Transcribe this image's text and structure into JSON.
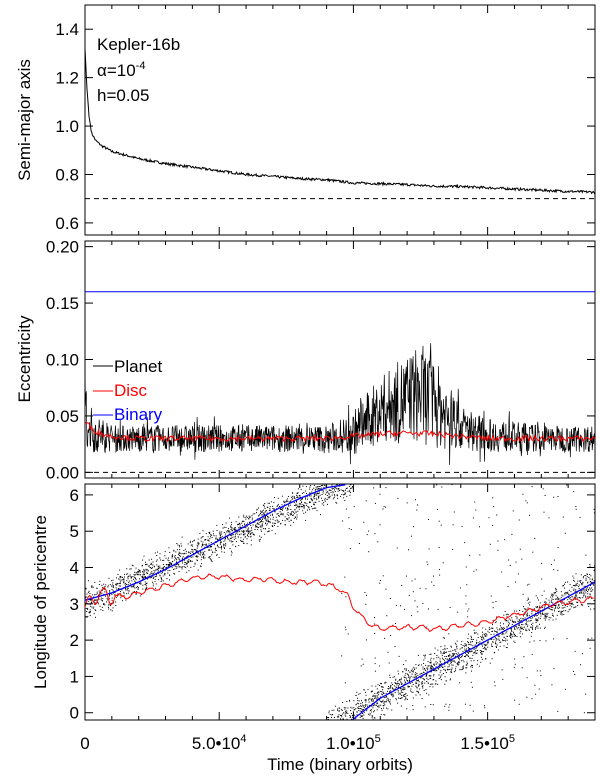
{
  "figure": {
    "xlabel": "Time (binary orbits)",
    "xlim": [
      0,
      190000
    ],
    "x_ticks": [
      {
        "value": 0,
        "label": "0"
      },
      {
        "value": 50000,
        "label": "5.0•10",
        "exp": "4"
      },
      {
        "value": 100000,
        "label": "1.0•10",
        "exp": "5"
      },
      {
        "value": 150000,
        "label": "1.5•10",
        "exp": "5"
      }
    ]
  },
  "chart_data": [
    {
      "type": "line",
      "ylabel": "Semi-major axis",
      "ylim": [
        0.55,
        1.5
      ],
      "y_ticks": [
        {
          "value": 0.6,
          "label": "0.6"
        },
        {
          "value": 0.8,
          "label": "0.8"
        },
        {
          "value": 1.0,
          "label": "1.0"
        },
        {
          "value": 1.2,
          "label": "1.2"
        },
        {
          "value": 1.4,
          "label": "1.4"
        }
      ],
      "annotations": {
        "name": "Kepler-16b",
        "alpha_base": "α=10",
        "alpha_exp": "-4",
        "h": "h=0.05"
      },
      "series": [
        {
          "color": "#000000",
          "x": [
            0,
            700,
            1500,
            2500,
            4000,
            6000,
            10000,
            15000,
            20000,
            30000,
            40000,
            50000,
            60000,
            70000,
            80000,
            90000,
            100000,
            110000,
            120000,
            130000,
            140000,
            150000,
            160000,
            170000,
            180000,
            190000
          ],
          "y": [
            1.32,
            1.16,
            1.04,
            0.97,
            0.94,
            0.92,
            0.895,
            0.88,
            0.865,
            0.845,
            0.83,
            0.815,
            0.8,
            0.792,
            0.783,
            0.778,
            0.765,
            0.762,
            0.758,
            0.752,
            0.75,
            0.745,
            0.74,
            0.735,
            0.73,
            0.727
          ]
        }
      ],
      "reference_line": {
        "y": 0.7,
        "style": "dashed"
      }
    },
    {
      "type": "line",
      "ylabel": "Eccentricity",
      "ylim": [
        -0.005,
        0.205
      ],
      "y_ticks": [
        {
          "value": 0.0,
          "label": "0.00"
        },
        {
          "value": 0.05,
          "label": "0.05"
        },
        {
          "value": 0.1,
          "label": "0.10"
        },
        {
          "value": 0.15,
          "label": "0.15"
        },
        {
          "value": 0.2,
          "label": "0.20"
        }
      ],
      "legend": {
        "placement": "middle-left",
        "entries": [
          {
            "label": "Planet",
            "color": "#000000"
          },
          {
            "label": "Disc",
            "color": "#ff0000"
          },
          {
            "label": "Binary",
            "color": "#0000ff"
          }
        ]
      },
      "series": [
        {
          "name": "Binary",
          "color": "#0000ff",
          "x": [
            0,
            190000
          ],
          "y": [
            0.16,
            0.16
          ]
        },
        {
          "name": "Disc",
          "color": "#ff0000",
          "x": [
            0,
            2000,
            5000,
            10000,
            20000,
            40000,
            60000,
            80000,
            90000,
            100000,
            110000,
            120000,
            130000,
            140000,
            150000,
            160000,
            170000,
            180000,
            190000
          ],
          "y": [
            0.045,
            0.04,
            0.035,
            0.032,
            0.03,
            0.03,
            0.03,
            0.03,
            0.03,
            0.032,
            0.034,
            0.035,
            0.034,
            0.032,
            0.03,
            0.03,
            0.03,
            0.03,
            0.03
          ]
        },
        {
          "name": "Planet",
          "color": "#000000",
          "envelope": {
            "x": [
              0,
              3000,
              10000,
              30000,
              60000,
              90000,
              95000,
              100000,
              105000,
              110000,
              115000,
              120000,
              125000,
              130000,
              135000,
              140000,
              150000,
              170000,
              190000
            ],
            "center": [
              0.05,
              0.035,
              0.03,
              0.03,
              0.03,
              0.03,
              0.032,
              0.035,
              0.045,
              0.055,
              0.06,
              0.065,
              0.07,
              0.062,
              0.05,
              0.04,
              0.033,
              0.03,
              0.03
            ],
            "amplitude": [
              0.03,
              0.018,
              0.012,
              0.012,
              0.012,
              0.012,
              0.015,
              0.02,
              0.025,
              0.03,
              0.035,
              0.04,
              0.045,
              0.04,
              0.03,
              0.02,
              0.015,
              0.012,
              0.012
            ]
          }
        }
      ],
      "reference_line": {
        "y": 0.0,
        "style": "dashed"
      }
    },
    {
      "type": "scatter",
      "ylabel": "Longitude of pericentre",
      "ylim": [
        -0.2,
        6.3
      ],
      "y_ticks": [
        {
          "value": 0,
          "label": "0"
        },
        {
          "value": 1,
          "label": "1"
        },
        {
          "value": 2,
          "label": "2"
        },
        {
          "value": 3,
          "label": "3"
        },
        {
          "value": 4,
          "label": "4"
        },
        {
          "value": 5,
          "label": "5"
        },
        {
          "value": 6,
          "label": "6"
        }
      ],
      "series": [
        {
          "name": "Planet",
          "color": "#000000",
          "style": "dots",
          "bands": [
            {
              "x": [
                0,
                100000
              ],
              "center": [
                3.0,
                6.5
              ],
              "spread": 0.45
            },
            {
              "x": [
                90000,
                190000
              ],
              "center": [
                -0.4,
                3.6
              ],
              "spread": 0.45
            }
          ]
        },
        {
          "name": "Binary",
          "color": "#0000ff",
          "x": [
            0,
            10000,
            20000,
            30000,
            40000,
            50000,
            60000,
            70000,
            80000,
            90000,
            97000
          ],
          "y": [
            3.1,
            3.3,
            3.6,
            3.95,
            4.35,
            4.75,
            5.15,
            5.55,
            5.9,
            6.2,
            6.28
          ]
        },
        {
          "name": "Binary",
          "color": "#0000ff",
          "x": [
            99500,
            110000,
            120000,
            130000,
            140000,
            150000,
            160000,
            170000,
            180000,
            190000
          ],
          "y": [
            -0.2,
            0.4,
            0.8,
            1.2,
            1.6,
            2.0,
            2.4,
            2.8,
            3.2,
            3.6
          ]
        },
        {
          "name": "Disc",
          "color": "#ff0000",
          "x": [
            0,
            3000,
            5000,
            8000,
            10000,
            15000,
            20000,
            25000,
            30000,
            35000,
            40000,
            45000,
            50000,
            55000,
            60000,
            65000,
            70000,
            75000,
            80000,
            85000,
            90000,
            95000,
            98000,
            100000,
            105000,
            110000,
            115000,
            120000,
            125000,
            130000,
            135000,
            140000,
            145000,
            150000,
            155000,
            160000,
            165000,
            170000,
            175000,
            180000,
            185000,
            190000
          ],
          "y": [
            2.9,
            3.1,
            3.3,
            3.2,
            3.2,
            3.2,
            3.3,
            3.4,
            3.5,
            3.6,
            3.7,
            3.75,
            3.75,
            3.7,
            3.65,
            3.7,
            3.65,
            3.6,
            3.6,
            3.6,
            3.55,
            3.4,
            3.2,
            2.9,
            2.5,
            2.3,
            2.35,
            2.35,
            2.35,
            2.3,
            2.35,
            2.4,
            2.45,
            2.5,
            2.6,
            2.7,
            2.8,
            2.9,
            3.0,
            3.05,
            3.1,
            3.15
          ]
        }
      ]
    }
  ]
}
